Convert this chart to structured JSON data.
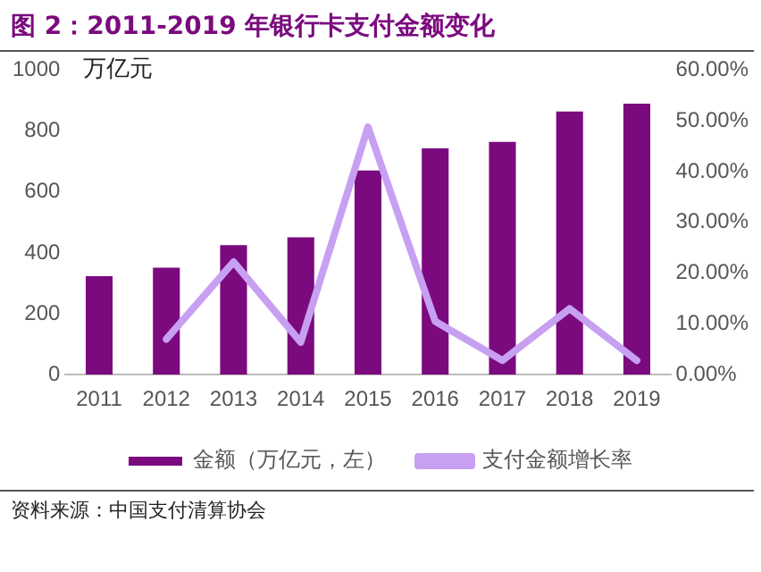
{
  "chart_data": {
    "type": "bar",
    "title": "图 2：2011-2019 年银行卡支付金额变化",
    "ylabel": "万亿元",
    "categories": [
      "2011",
      "2012",
      "2013",
      "2014",
      "2015",
      "2016",
      "2017",
      "2018",
      "2019"
    ],
    "series": [
      {
        "name": "金额（万亿元，左）",
        "color": "#7b0a7f",
        "values": [
          323,
          351,
          425,
          451,
          670,
          743,
          764,
          864,
          890
        ]
      },
      {
        "name": "支付金额增长率",
        "type": "line",
        "axis": "y2",
        "color": "#c7a0f2",
        "values": [
          null,
          7.0,
          22.2,
          6.4,
          48.8,
          10.5,
          2.8,
          13.0,
          2.8
        ]
      }
    ],
    "ylim": [
      0,
      1000
    ],
    "yticks": [
      0,
      200,
      400,
      600,
      800,
      1000
    ],
    "y2lim": [
      0,
      60
    ],
    "y2ticks": [
      {
        "value": 0,
        "label": "0.00%"
      },
      {
        "value": 10,
        "label": "10.00%"
      },
      {
        "value": 20,
        "label": "20.00%"
      },
      {
        "value": 30,
        "label": "30.00%"
      },
      {
        "value": 40,
        "label": "40.00%"
      },
      {
        "value": 50,
        "label": "50.00%"
      },
      {
        "value": 60,
        "label": "60.00%"
      }
    ],
    "grid": false,
    "legend": "bottom",
    "marker": "none",
    "annotations": [
      "资料来源：中国支付清算协会"
    ]
  }
}
